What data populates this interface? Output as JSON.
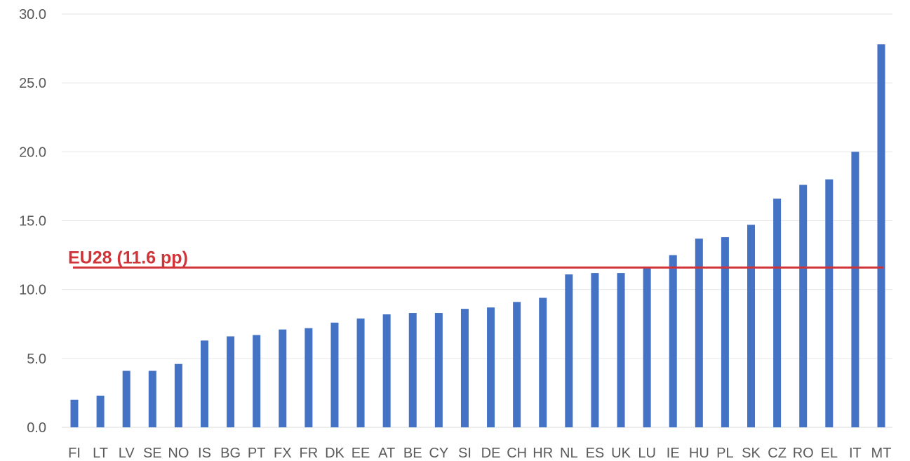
{
  "chart_data": {
    "type": "bar",
    "categories": [
      "FI",
      "LT",
      "LV",
      "SE",
      "NO",
      "IS",
      "BG",
      "PT",
      "FX",
      "FR",
      "DK",
      "EE",
      "AT",
      "BE",
      "CY",
      "SI",
      "DE",
      "CH",
      "HR",
      "NL",
      "ES",
      "UK",
      "LU",
      "IE",
      "HU",
      "PL",
      "SK",
      "CZ",
      "RO",
      "EL",
      "IT",
      "MT"
    ],
    "values": [
      2.0,
      2.3,
      4.1,
      4.1,
      4.6,
      6.3,
      6.6,
      6.7,
      7.1,
      7.2,
      7.6,
      7.9,
      8.2,
      8.3,
      8.3,
      8.6,
      8.7,
      9.1,
      9.4,
      11.1,
      11.2,
      11.2,
      11.6,
      12.5,
      13.7,
      13.8,
      14.7,
      16.6,
      17.6,
      18.0,
      20.0,
      27.8
    ],
    "ylim": [
      0,
      30
    ],
    "yticks": [
      "0.0",
      "5.0",
      "10.0",
      "15.0",
      "20.0",
      "25.0",
      "30.0"
    ],
    "grid": true,
    "bar_color": "#4472C4",
    "reference_line": {
      "value": 11.6,
      "label": "EU28 (11.6 pp)",
      "color": "#D13438"
    }
  }
}
